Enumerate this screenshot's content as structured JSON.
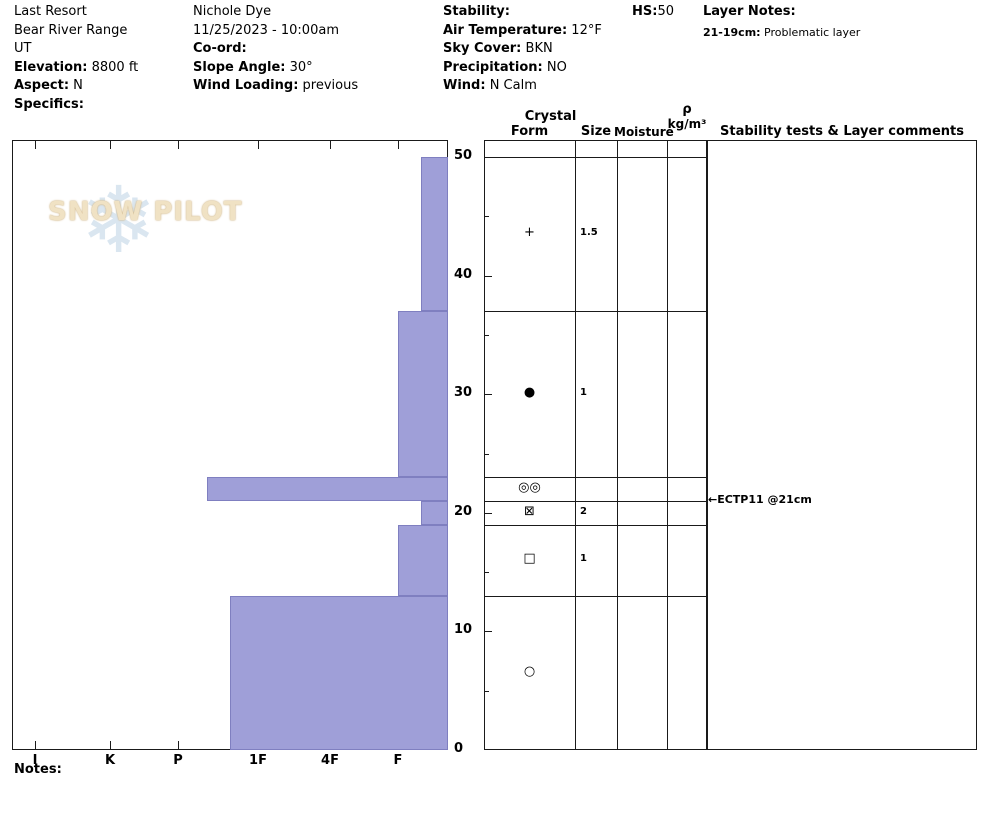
{
  "header": {
    "site": {
      "name": "Last Resort",
      "range": "Bear River Range",
      "state": "UT",
      "elevation_label": "Elevation:",
      "elevation_value": " 8800 ft",
      "aspect_label": "Aspect:",
      "aspect_value": " N",
      "specifics_label": "Specifics:"
    },
    "observer": {
      "name": "Nichole Dye",
      "datetime": "11/25/2023 - 10:00am",
      "coord_label": "Co-ord:",
      "slope_angle_label": "Slope Angle:",
      "slope_angle_value": " 30°",
      "wind_loading_label": "Wind Loading:",
      "wind_loading_value": " previous"
    },
    "conditions": {
      "stability_label": "Stability:",
      "air_temp_label": "Air Temperature:",
      "air_temp_value": " 12°F",
      "sky_label": "Sky Cover:",
      "sky_value": " BKN",
      "precip_label": "Precipitation:",
      "precip_value": " NO",
      "wind_label": "Wind:",
      "wind_value": " N Calm"
    },
    "hs_label": "HS:",
    "hs_value": "50",
    "layer_notes_label": "Layer Notes:",
    "layer_note_depth": "21-19cm:",
    "layer_note_text": " Problematic layer"
  },
  "columns": {
    "crystal": "Crystal",
    "form": "Form",
    "size": "Size",
    "moisture": "Moisture",
    "rho_symbol": "ρ",
    "rho_units": "kg/m³",
    "stability_header": "Stability tests & Layer comments"
  },
  "watermark_text": "SNOW PILOT",
  "notes_label": "Notes:",
  "chart_data": {
    "type": "snow-profile-bar",
    "title": "Snow pit hardness profile",
    "depth_axis": {
      "units": "cm",
      "max": 50,
      "tick_labels": [
        50,
        40,
        30,
        20,
        10,
        0
      ]
    },
    "hardness_axis": {
      "categories": [
        "I",
        "K",
        "P",
        "1F",
        "4F",
        "F"
      ]
    },
    "layers": [
      {
        "top_cm": 50,
        "bottom_cm": 37,
        "hardness": "F-",
        "grain_form_symbol": "+",
        "grain_size_mm": "1.5"
      },
      {
        "top_cm": 37,
        "bottom_cm": 23,
        "hardness": "F",
        "grain_form_symbol": "●",
        "grain_size_mm": "1"
      },
      {
        "top_cm": 23,
        "bottom_cm": 21,
        "hardness": "P-",
        "grain_form_symbol": "◎◎",
        "grain_size_mm": ""
      },
      {
        "top_cm": 21,
        "bottom_cm": 19,
        "hardness": "F-",
        "grain_form_symbol": "⊠",
        "grain_size_mm": "2"
      },
      {
        "top_cm": 19,
        "bottom_cm": 13,
        "hardness": "F",
        "grain_form_symbol": "□",
        "grain_size_mm": "1"
      },
      {
        "top_cm": 13,
        "bottom_cm": 0,
        "hardness": "1F+",
        "grain_form_symbol": "○",
        "grain_size_mm": ""
      }
    ],
    "stability_tests": [
      {
        "label": "ECTP11 @21cm",
        "depth_cm": 21
      }
    ],
    "colors": {
      "bar_fill": "#9f9fd8",
      "bar_border": "#7f7fc0",
      "grid": "#1a1a1a"
    }
  }
}
